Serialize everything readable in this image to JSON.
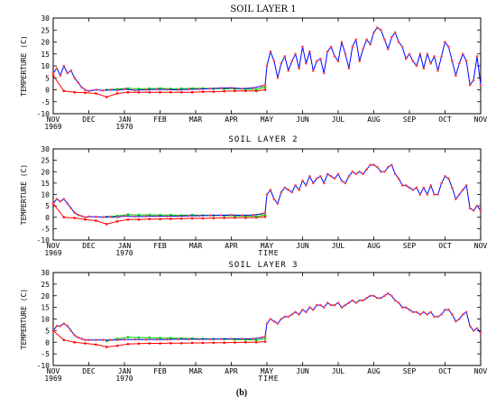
{
  "caption": "(b)",
  "chart_data": [
    {
      "type": "line",
      "title": "SOIL LAYER 1",
      "ylabel": "TEMPERTURE (C)",
      "xlabel": "",
      "ylim": [
        -10,
        30
      ],
      "yticks": [
        -10,
        -5,
        0,
        5,
        10,
        15,
        20,
        25,
        30
      ],
      "xlim": [
        0,
        12
      ],
      "xticks": [
        {
          "x": 0,
          "label": "NOV",
          "sub": "1969"
        },
        {
          "x": 1,
          "label": "DEC",
          "sub": ""
        },
        {
          "x": 2,
          "label": "JAN",
          "sub": "1970"
        },
        {
          "x": 3,
          "label": "FEB",
          "sub": ""
        },
        {
          "x": 4,
          "label": "MAR",
          "sub": ""
        },
        {
          "x": 5,
          "label": "APR",
          "sub": ""
        },
        {
          "x": 6,
          "label": "MAY",
          "sub": ""
        },
        {
          "x": 7,
          "label": "JUN",
          "sub": ""
        },
        {
          "x": 8,
          "label": "JUL",
          "sub": ""
        },
        {
          "x": 9,
          "label": "AUG",
          "sub": ""
        },
        {
          "x": 10,
          "label": "SEP",
          "sub": ""
        },
        {
          "x": 11,
          "label": "OCT",
          "sub": ""
        },
        {
          "x": 12,
          "label": "NOV",
          "sub": ""
        }
      ],
      "series": [
        {
          "color": "#ff0000",
          "x": [
            0,
            0.3,
            0.6,
            0.9,
            1.2,
            1.5,
            1.8,
            2.1,
            2.4,
            2.7,
            3.0,
            3.3,
            3.6,
            3.9,
            4.2,
            4.5,
            4.8,
            5.1,
            5.4,
            5.7,
            5.95
          ],
          "y": [
            6,
            -0.5,
            -1,
            -1.2,
            -1.5,
            -3,
            -1.5,
            -1,
            -1,
            -1,
            -1,
            -1,
            -1,
            -1,
            -0.8,
            -0.8,
            -0.6,
            -0.5,
            -0.5,
            -0.5,
            0
          ]
        },
        {
          "color": "#00cc00",
          "x": [
            1.5,
            1.8,
            2.1,
            2.4,
            2.7,
            3.0,
            3.3,
            3.6,
            3.9,
            4.2,
            4.5,
            4.8,
            5.1,
            5.4,
            5.7,
            5.95
          ],
          "y": [
            0,
            0.3,
            0.6,
            0.4,
            0.5,
            0.6,
            0.4,
            0.5,
            0.6,
            0.6,
            0.5,
            0.4,
            0.5,
            0.3,
            0.2,
            1
          ]
        },
        {
          "color": "#0000ff",
          "x": [
            0,
            0.1,
            0.2,
            0.3,
            0.4,
            0.5,
            0.6,
            0.7,
            0.8,
            0.9,
            1.0,
            1.2,
            1.4,
            1.6,
            1.8,
            2.0,
            2.3,
            2.6,
            2.9,
            3.2,
            3.5,
            3.8,
            4.1,
            4.4,
            4.7,
            5.0,
            5.3,
            5.6,
            5.85,
            5.95,
            6.0,
            6.1,
            6.2,
            6.3,
            6.4,
            6.5,
            6.6,
            6.7,
            6.8,
            6.9,
            7.0,
            7.1,
            7.2,
            7.3,
            7.4,
            7.5,
            7.6,
            7.7,
            7.8,
            7.9,
            8.0,
            8.1,
            8.2,
            8.3,
            8.4,
            8.5,
            8.6,
            8.7,
            8.8,
            8.9,
            9.0,
            9.1,
            9.2,
            9.3,
            9.4,
            9.5,
            9.6,
            9.7,
            9.8,
            9.9,
            10.0,
            10.1,
            10.2,
            10.3,
            10.4,
            10.5,
            10.6,
            10.7,
            10.8,
            10.9,
            11.0,
            11.1,
            11.2,
            11.3,
            11.4,
            11.5,
            11.6,
            11.7,
            11.8,
            11.9,
            12.0
          ],
          "y": [
            7,
            9,
            6,
            10,
            7,
            8,
            5,
            3,
            1,
            0,
            -0.5,
            0,
            -0.3,
            0,
            -0.2,
            0.3,
            -0.2,
            0,
            0.2,
            0.1,
            0,
            0.2,
            0.3,
            0.5,
            0.7,
            0.8,
            0.5,
            0.8,
            1.5,
            2,
            10,
            16,
            12,
            5,
            11,
            14,
            8,
            12,
            15,
            9,
            18,
            11,
            16,
            8,
            12,
            13,
            7,
            16,
            18,
            14,
            12,
            20,
            15,
            9,
            18,
            21,
            12,
            17,
            21,
            19,
            24,
            26,
            25,
            21,
            17,
            22,
            24,
            20,
            18,
            13,
            15,
            12,
            10,
            15,
            9,
            15,
            11,
            14,
            8,
            14,
            20,
            18,
            12,
            6,
            11,
            15,
            12,
            2,
            4,
            14,
            2
          ]
        }
      ]
    },
    {
      "type": "line",
      "title": "SOIL LAYER 2",
      "ylabel": "TEMPERTURE (C)",
      "xlabel": "TIME",
      "ylim": [
        -10,
        30
      ],
      "yticks": [
        -10,
        -5,
        0,
        5,
        10,
        15,
        20,
        25,
        30
      ],
      "xlim": [
        0,
        12
      ],
      "xticks": [
        {
          "x": 0,
          "label": "NOV",
          "sub": "1969"
        },
        {
          "x": 1,
          "label": "DEC",
          "sub": ""
        },
        {
          "x": 2,
          "label": "JAN",
          "sub": "1970"
        },
        {
          "x": 3,
          "label": "FEB",
          "sub": ""
        },
        {
          "x": 4,
          "label": "MAR",
          "sub": ""
        },
        {
          "x": 5,
          "label": "APR",
          "sub": ""
        },
        {
          "x": 6,
          "label": "MAY",
          "sub": ""
        },
        {
          "x": 7,
          "label": "JUN",
          "sub": ""
        },
        {
          "x": 8,
          "label": "JUL",
          "sub": ""
        },
        {
          "x": 9,
          "label": "AUG",
          "sub": ""
        },
        {
          "x": 10,
          "label": "SEP",
          "sub": ""
        },
        {
          "x": 11,
          "label": "OCT",
          "sub": ""
        },
        {
          "x": 12,
          "label": "NOV",
          "sub": ""
        }
      ],
      "series": [
        {
          "color": "#ff0000",
          "x": [
            0,
            0.3,
            0.6,
            0.9,
            1.2,
            1.5,
            1.8,
            2.1,
            2.4,
            2.7,
            3.0,
            3.3,
            3.6,
            3.9,
            4.2,
            4.5,
            4.8,
            5.1,
            5.4,
            5.7,
            5.95
          ],
          "y": [
            6,
            0,
            -0.3,
            -1,
            -1.5,
            -3,
            -1.8,
            -1,
            -1,
            -0.8,
            -0.8,
            -0.7,
            -0.6,
            -0.5,
            -0.5,
            -0.4,
            -0.3,
            -0.2,
            -0.2,
            -0.1,
            0.2
          ]
        },
        {
          "color": "#00cc00",
          "x": [
            1.5,
            1.8,
            2.1,
            2.4,
            2.7,
            3.0,
            3.3,
            3.6,
            3.9,
            4.2,
            4.5,
            4.8,
            5.1,
            5.4,
            5.7,
            5.95
          ],
          "y": [
            0.2,
            0.6,
            1.2,
            1,
            1.1,
            1,
            1,
            0.9,
            1,
            0.9,
            0.8,
            0.7,
            0.6,
            0.5,
            0.4,
            1
          ]
        },
        {
          "color": "#0000ff",
          "x": [
            0,
            0.1,
            0.2,
            0.3,
            0.4,
            0.5,
            0.6,
            0.7,
            0.8,
            0.9,
            1.0,
            1.2,
            1.4,
            1.6,
            1.8,
            2.0,
            2.3,
            2.6,
            2.9,
            3.2,
            3.5,
            3.8,
            4.1,
            4.4,
            4.7,
            5.0,
            5.3,
            5.6,
            5.85,
            5.95,
            6.0,
            6.1,
            6.2,
            6.3,
            6.4,
            6.5,
            6.6,
            6.7,
            6.8,
            6.9,
            7.0,
            7.1,
            7.2,
            7.3,
            7.4,
            7.5,
            7.6,
            7.7,
            7.8,
            7.9,
            8.0,
            8.1,
            8.2,
            8.3,
            8.4,
            8.5,
            8.6,
            8.7,
            8.8,
            8.9,
            9.0,
            9.1,
            9.2,
            9.3,
            9.4,
            9.5,
            9.6,
            9.7,
            9.8,
            9.9,
            10.0,
            10.1,
            10.2,
            10.3,
            10.4,
            10.5,
            10.6,
            10.7,
            10.8,
            10.9,
            11.0,
            11.1,
            11.2,
            11.3,
            11.4,
            11.5,
            11.6,
            11.7,
            11.8,
            11.9,
            12.0
          ],
          "y": [
            6,
            8,
            7,
            8,
            6,
            4,
            2,
            1,
            0.5,
            0,
            0.3,
            0.2,
            0.1,
            0.2,
            0.1,
            0.5,
            0.3,
            0.4,
            0.5,
            0.4,
            0.5,
            0.6,
            0.7,
            0.8,
            0.9,
            1,
            0.9,
            1,
            1.5,
            2,
            10,
            12,
            8,
            6,
            11,
            13,
            12,
            11,
            14,
            12,
            16,
            14,
            18,
            15,
            17,
            18,
            15,
            19,
            18,
            17,
            19,
            16,
            15,
            18,
            20,
            19,
            20,
            19,
            21,
            23,
            23,
            22,
            20,
            20,
            22,
            23,
            19,
            17,
            14,
            14,
            13,
            12,
            13,
            10,
            13,
            10,
            14,
            10,
            10,
            15,
            18,
            17,
            13,
            8,
            10,
            12,
            14,
            4,
            3,
            5,
            3
          ]
        }
      ]
    },
    {
      "type": "line",
      "title": "SOIL LAYER 3",
      "ylabel": "TEMPERTURE (C)",
      "xlabel": "TIME",
      "ylim": [
        -10,
        30
      ],
      "yticks": [
        -10,
        -5,
        0,
        5,
        10,
        15,
        20,
        25,
        30
      ],
      "xlim": [
        0,
        12
      ],
      "xticks": [
        {
          "x": 0,
          "label": "NOV",
          "sub": "1969"
        },
        {
          "x": 1,
          "label": "DEC",
          "sub": ""
        },
        {
          "x": 2,
          "label": "JAN",
          "sub": "1970"
        },
        {
          "x": 3,
          "label": "FEB",
          "sub": ""
        },
        {
          "x": 4,
          "label": "MAR",
          "sub": ""
        },
        {
          "x": 5,
          "label": "APR",
          "sub": ""
        },
        {
          "x": 6,
          "label": "MAY",
          "sub": ""
        },
        {
          "x": 7,
          "label": "JUN",
          "sub": ""
        },
        {
          "x": 8,
          "label": "JUL",
          "sub": ""
        },
        {
          "x": 9,
          "label": "AUG",
          "sub": ""
        },
        {
          "x": 10,
          "label": "SEP",
          "sub": ""
        },
        {
          "x": 11,
          "label": "OCT",
          "sub": ""
        },
        {
          "x": 12,
          "label": "NOV",
          "sub": ""
        }
      ],
      "series": [
        {
          "color": "#ff0000",
          "x": [
            0,
            0.3,
            0.6,
            0.9,
            1.2,
            1.5,
            1.8,
            2.1,
            2.4,
            2.7,
            3.0,
            3.3,
            3.6,
            3.9,
            4.2,
            4.5,
            4.8,
            5.1,
            5.4,
            5.7,
            5.95
          ],
          "y": [
            5,
            1,
            0,
            -0.5,
            -1,
            -2,
            -1.5,
            -0.8,
            -0.6,
            -0.5,
            -0.5,
            -0.4,
            -0.4,
            -0.3,
            -0.3,
            -0.2,
            -0.2,
            -0.1,
            0,
            0,
            0.3
          ]
        },
        {
          "color": "#00cc00",
          "x": [
            1.5,
            1.8,
            2.1,
            2.4,
            2.7,
            3.0,
            3.3,
            3.6,
            3.9,
            4.2,
            4.5,
            4.8,
            5.1,
            5.4,
            5.7,
            5.95
          ],
          "y": [
            0.5,
            1.5,
            2.2,
            2,
            2,
            1.8,
            1.8,
            1.7,
            1.6,
            1.5,
            1.4,
            1.3,
            1.2,
            1.1,
            1,
            1.5
          ]
        },
        {
          "color": "#0000ff",
          "x": [
            0,
            0.1,
            0.2,
            0.3,
            0.4,
            0.5,
            0.6,
            0.7,
            0.8,
            0.9,
            1.0,
            1.2,
            1.4,
            1.6,
            1.8,
            2.0,
            2.3,
            2.6,
            2.9,
            3.2,
            3.5,
            3.8,
            4.1,
            4.4,
            4.7,
            5.0,
            5.3,
            5.6,
            5.85,
            5.95,
            6.0,
            6.1,
            6.2,
            6.3,
            6.4,
            6.5,
            6.6,
            6.7,
            6.8,
            6.9,
            7.0,
            7.1,
            7.2,
            7.3,
            7.4,
            7.5,
            7.6,
            7.7,
            7.8,
            7.9,
            8.0,
            8.1,
            8.2,
            8.3,
            8.4,
            8.5,
            8.6,
            8.7,
            8.8,
            8.9,
            9.0,
            9.1,
            9.2,
            9.3,
            9.4,
            9.5,
            9.6,
            9.7,
            9.8,
            9.9,
            10.0,
            10.1,
            10.2,
            10.3,
            10.4,
            10.5,
            10.6,
            10.7,
            10.8,
            10.9,
            11.0,
            11.1,
            11.2,
            11.3,
            11.4,
            11.5,
            11.6,
            11.7,
            11.8,
            11.9,
            12.0
          ],
          "y": [
            5,
            7,
            7,
            8,
            7,
            5,
            3,
            2,
            1.5,
            1,
            1,
            1,
            1,
            1,
            1,
            1.2,
            1.2,
            1.2,
            1.2,
            1.2,
            1.3,
            1.3,
            1.3,
            1.3,
            1.4,
            1.5,
            1.5,
            1.5,
            2,
            2.5,
            8,
            10,
            9,
            8,
            10,
            11,
            11,
            12,
            13,
            12,
            14,
            13,
            15,
            14,
            16,
            16,
            15,
            17,
            16,
            16,
            17,
            15,
            16,
            17,
            18,
            17,
            18,
            18,
            19,
            20,
            20,
            19,
            19,
            20,
            21,
            20,
            18,
            17,
            15,
            15,
            14,
            13,
            13,
            12,
            13,
            12,
            13,
            11,
            11,
            12,
            14,
            14,
            12,
            9,
            10,
            12,
            13,
            7,
            5,
            6,
            4
          ]
        }
      ]
    }
  ]
}
